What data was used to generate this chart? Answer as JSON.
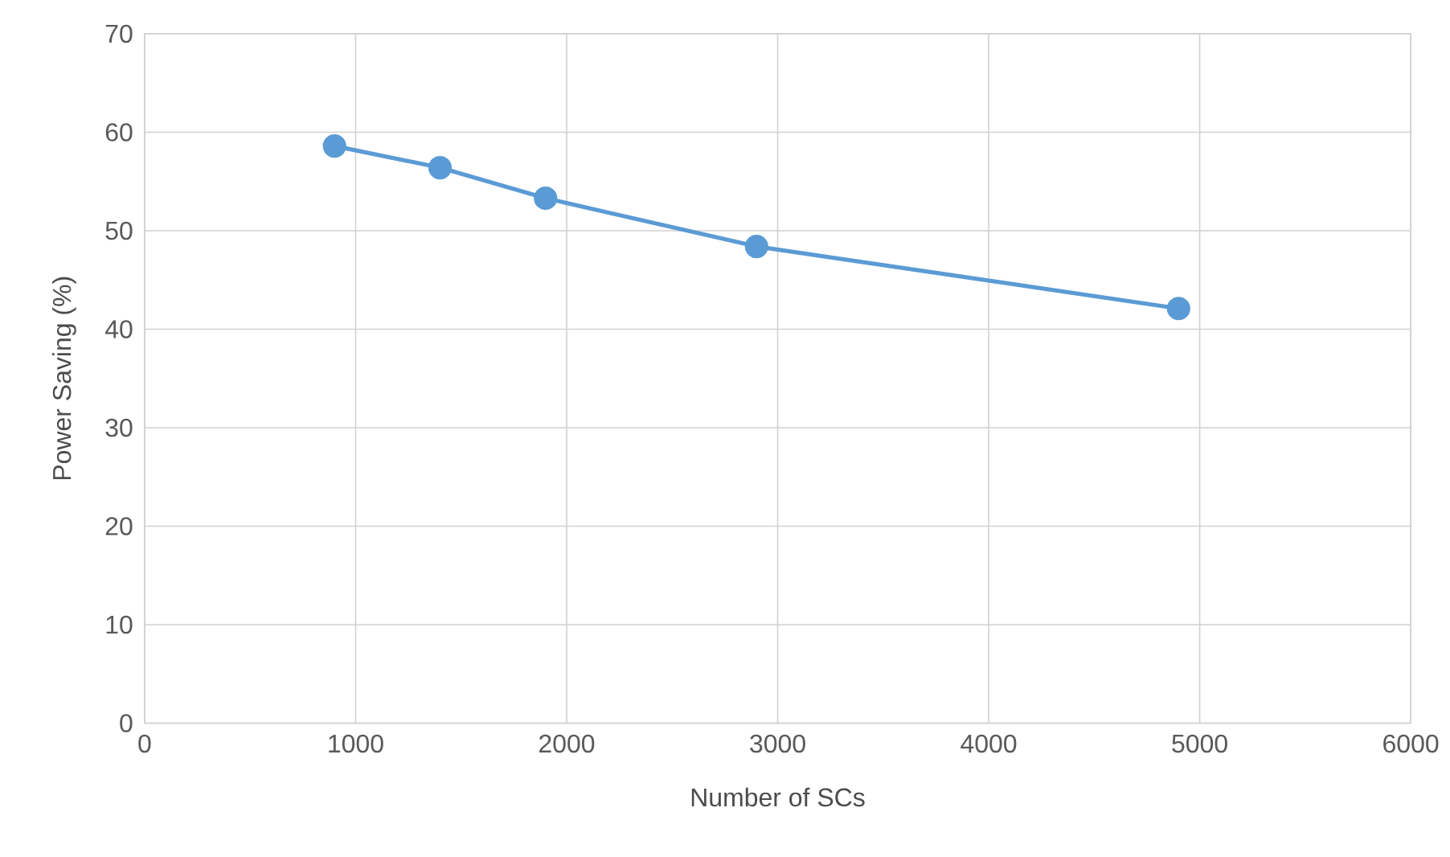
{
  "chart_data": {
    "type": "line",
    "xlabel": "Number of SCs",
    "ylabel": "Power Saving (%)",
    "x": [
      900,
      1400,
      1900,
      2900,
      4900
    ],
    "series": [
      {
        "color": "#5b9bd5",
        "values": [
          58.6,
          56.4,
          53.3,
          48.4,
          42.1
        ]
      }
    ],
    "xlim": [
      0,
      6000
    ],
    "xticks": [
      0,
      1000,
      2000,
      3000,
      4000,
      5000,
      6000
    ],
    "ylim": [
      0,
      70
    ],
    "yticks": [
      0,
      10,
      20,
      30,
      40,
      50,
      60,
      70
    ],
    "grid": true,
    "marker": "circle",
    "line_style": "solid"
  }
}
